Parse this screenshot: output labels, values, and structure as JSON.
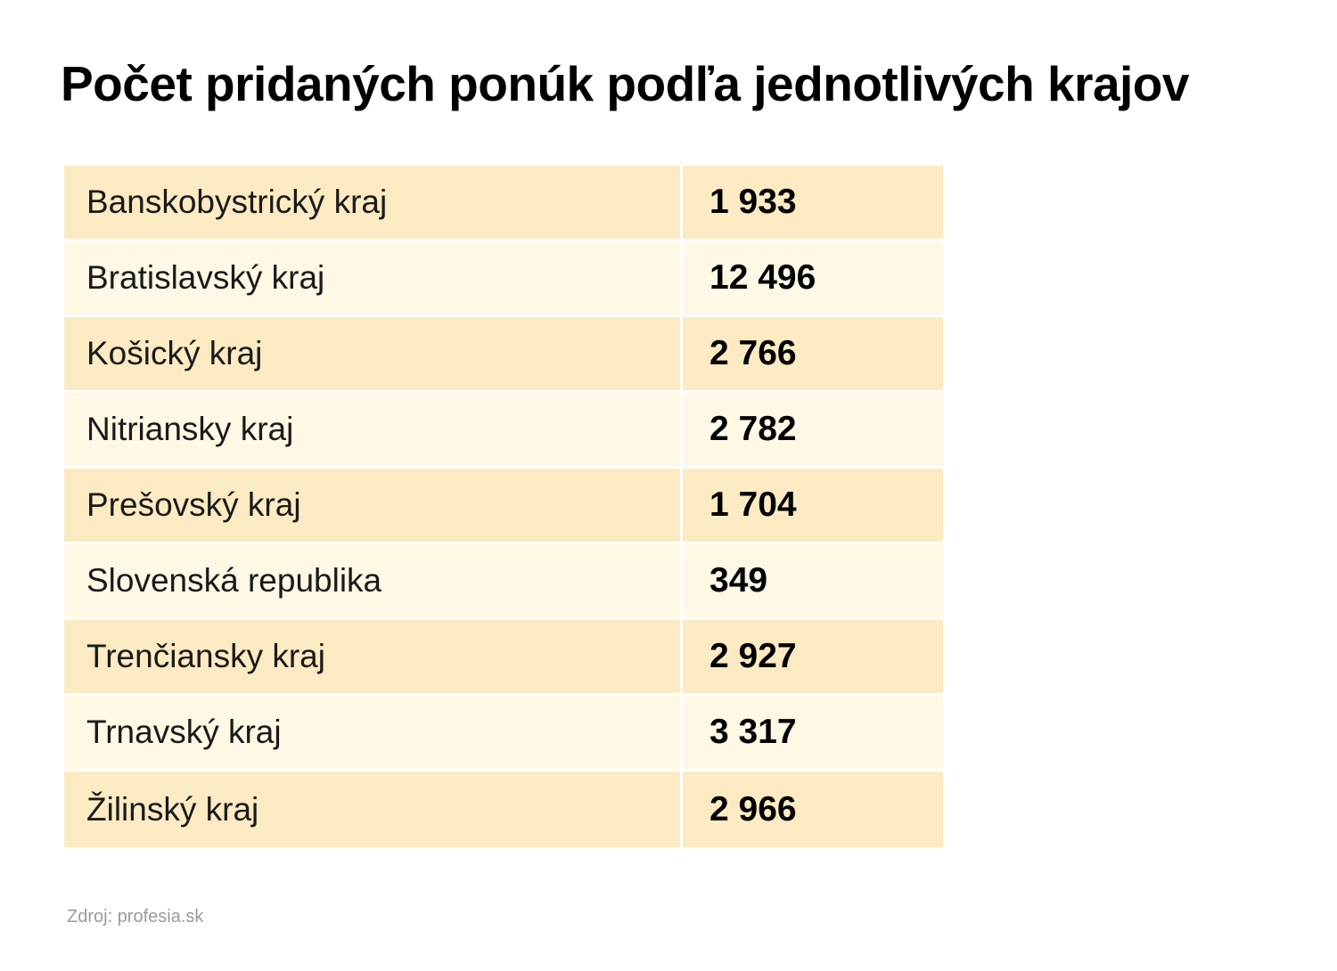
{
  "title": "Počet pridaných ponúk podľa jednotlivých krajov",
  "source": "Zdroj: profesia.sk",
  "colors": {
    "row_odd": "#fcebc2",
    "row_even": "#fef8e5"
  },
  "chart_data": {
    "type": "table",
    "title": "Počet pridaných ponúk podľa jednotlivých krajov",
    "rows": [
      {
        "label": "Banskobystrický kraj",
        "value": 1933,
        "display": "1 933"
      },
      {
        "label": "Bratislavský kraj",
        "value": 12496,
        "display": "12 496"
      },
      {
        "label": "Košický kraj",
        "value": 2766,
        "display": "2 766"
      },
      {
        "label": "Nitriansky kraj",
        "value": 2782,
        "display": "2 782"
      },
      {
        "label": "Prešovský kraj",
        "value": 1704,
        "display": "1 704"
      },
      {
        "label": "Slovenská republika",
        "value": 349,
        "display": "349"
      },
      {
        "label": "Trenčiansky kraj",
        "value": 2927,
        "display": "2 927"
      },
      {
        "label": "Trnavský kraj",
        "value": 3317,
        "display": "3 317"
      },
      {
        "label": "Žilinský kraj",
        "value": 2966,
        "display": "2 966"
      }
    ]
  }
}
